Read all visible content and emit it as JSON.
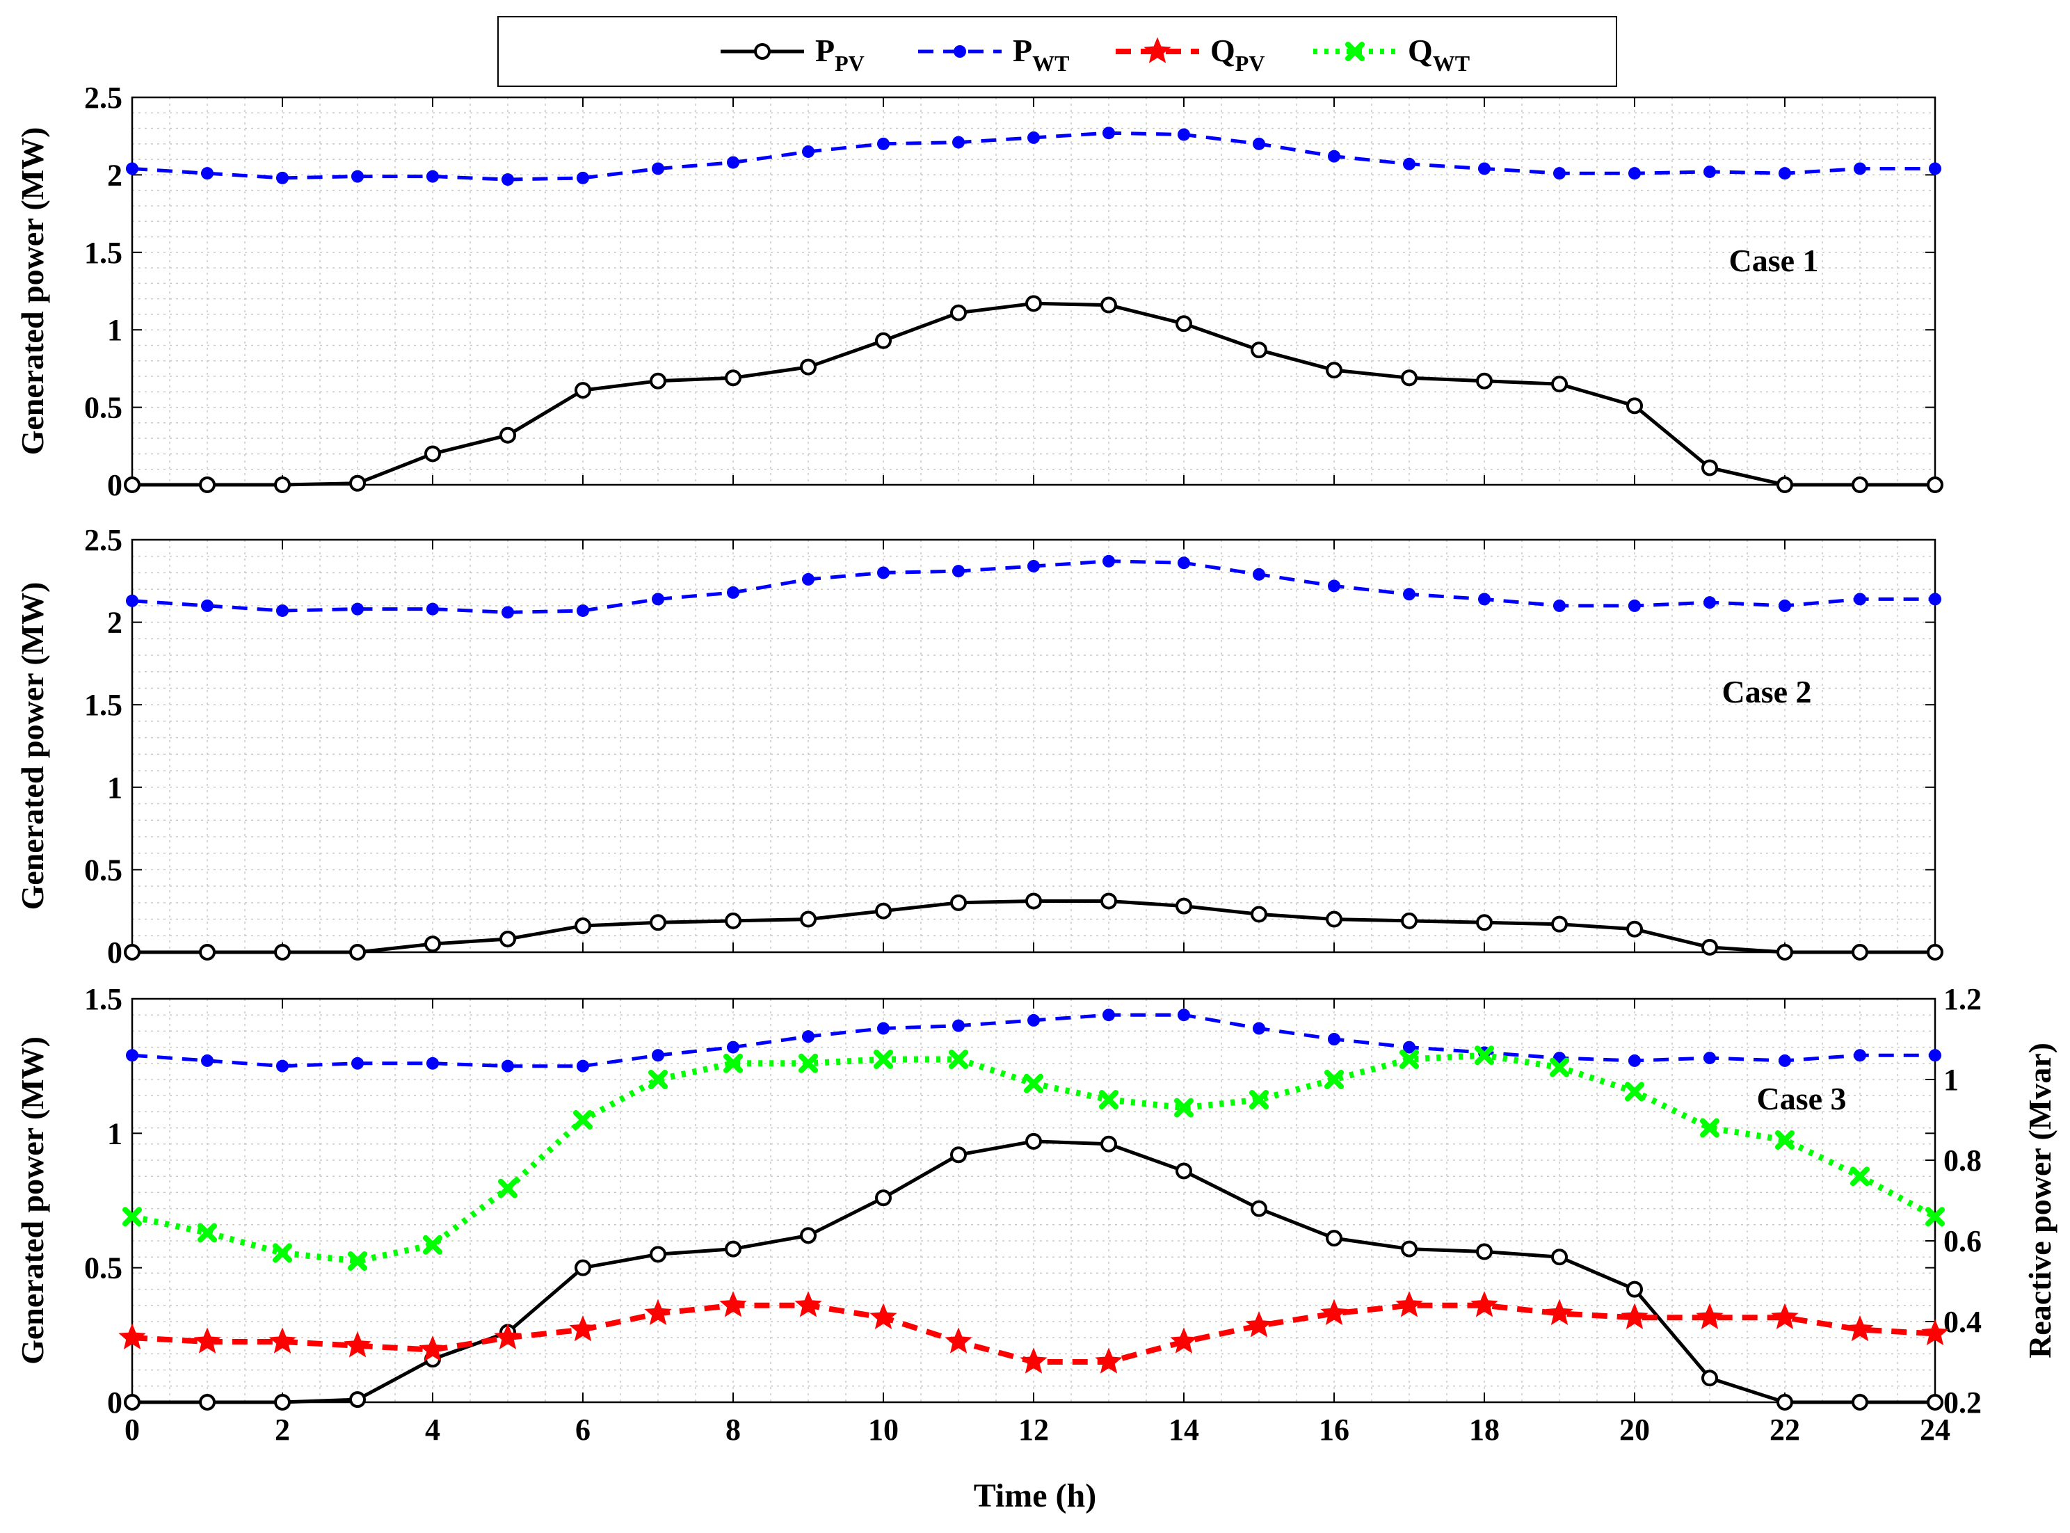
{
  "chart_data": {
    "type": "line",
    "legend": {
      "placement": "top-center",
      "entries": [
        {
          "main": "P",
          "sub": "PV",
          "color": "#000000",
          "style": "solid",
          "marker": "circle"
        },
        {
          "main": "P",
          "sub": "WT",
          "color": "#0000ff",
          "style": "dashed",
          "marker": "dot"
        },
        {
          "main": "Q",
          "sub": "PV",
          "color": "#ff0000",
          "style": "dashed",
          "marker": "star"
        },
        {
          "main": "Q",
          "sub": "WT",
          "color": "#00ff00",
          "style": "dotted",
          "marker": "x"
        }
      ]
    },
    "xlabel": "Time (h)",
    "x": [
      0,
      1,
      2,
      3,
      4,
      5,
      6,
      7,
      8,
      9,
      10,
      11,
      12,
      13,
      14,
      15,
      16,
      17,
      18,
      19,
      20,
      21,
      22,
      23,
      24
    ],
    "xticks": [
      0,
      2,
      4,
      6,
      8,
      10,
      12,
      14,
      16,
      18,
      20,
      22,
      24
    ],
    "xlim": [
      0,
      24
    ],
    "panels": [
      {
        "label": "Case 1",
        "ylabel": "Generated power (MW)",
        "ylim": [
          0,
          2.5
        ],
        "yticks": [
          0,
          0.5,
          1,
          1.5,
          2,
          2.5
        ],
        "ytick_labels": [
          "0",
          "0.5",
          "1",
          "1.5",
          "2",
          "2.5"
        ],
        "series": [
          {
            "name": "P_WT",
            "values": [
              2.04,
              2.01,
              1.98,
              1.99,
              1.99,
              1.97,
              1.98,
              2.04,
              2.08,
              2.15,
              2.2,
              2.21,
              2.24,
              2.27,
              2.26,
              2.2,
              2.12,
              2.07,
              2.04,
              2.01,
              2.01,
              2.02,
              2.01,
              2.04,
              2.04
            ]
          },
          {
            "name": "P_PV",
            "values": [
              0,
              0,
              0,
              0.01,
              0.2,
              0.32,
              0.61,
              0.67,
              0.69,
              0.76,
              0.93,
              1.11,
              1.17,
              1.16,
              1.04,
              0.87,
              0.74,
              0.69,
              0.67,
              0.65,
              0.51,
              0.11,
              0,
              0,
              0
            ]
          }
        ]
      },
      {
        "label": "Case 2",
        "ylabel": "Generated power (MW)",
        "ylim": [
          0,
          2.5
        ],
        "yticks": [
          0,
          0.5,
          1,
          1.5,
          2,
          2.5
        ],
        "ytick_labels": [
          "0",
          "0.5",
          "1",
          "1.5",
          "2",
          "2.5"
        ],
        "series": [
          {
            "name": "P_WT",
            "values": [
              2.13,
              2.1,
              2.07,
              2.08,
              2.08,
              2.06,
              2.07,
              2.14,
              2.18,
              2.26,
              2.3,
              2.31,
              2.34,
              2.37,
              2.36,
              2.29,
              2.22,
              2.17,
              2.14,
              2.1,
              2.1,
              2.12,
              2.1,
              2.14,
              2.14
            ]
          },
          {
            "name": "P_PV",
            "values": [
              0,
              0,
              0,
              0,
              0.05,
              0.08,
              0.16,
              0.18,
              0.19,
              0.2,
              0.25,
              0.3,
              0.31,
              0.31,
              0.28,
              0.23,
              0.2,
              0.19,
              0.18,
              0.17,
              0.14,
              0.03,
              0,
              0,
              0
            ]
          }
        ]
      },
      {
        "label": "Case 3",
        "ylabel": "Generated power (MW)",
        "ylabel_right": "Reactive power (Mvar)",
        "ylim": [
          0,
          1.5
        ],
        "yticks": [
          0,
          0.5,
          1,
          1.5
        ],
        "ytick_labels": [
          "0",
          "0.5",
          "1",
          "1.5"
        ],
        "ylim_right": [
          0.2,
          1.2
        ],
        "yticks_right": [
          0.2,
          0.4,
          0.6,
          0.8,
          1,
          1.2
        ],
        "ytick_labels_right": [
          "0.2",
          "0.4",
          "0.6",
          "0.8",
          "1",
          "1.2"
        ],
        "series": [
          {
            "name": "P_WT",
            "axis": "left",
            "values": [
              1.29,
              1.27,
              1.25,
              1.26,
              1.26,
              1.25,
              1.25,
              1.29,
              1.32,
              1.36,
              1.39,
              1.4,
              1.42,
              1.44,
              1.44,
              1.39,
              1.35,
              1.32,
              1.3,
              1.28,
              1.27,
              1.28,
              1.27,
              1.29,
              1.29
            ]
          },
          {
            "name": "P_PV",
            "axis": "left",
            "values": [
              0,
              0,
              0,
              0.01,
              0.16,
              0.26,
              0.5,
              0.55,
              0.57,
              0.62,
              0.76,
              0.92,
              0.97,
              0.96,
              0.86,
              0.72,
              0.61,
              0.57,
              0.56,
              0.54,
              0.42,
              0.09,
              0,
              0,
              0
            ]
          },
          {
            "name": "Q_PV",
            "axis": "right",
            "values": [
              0.36,
              0.35,
              0.35,
              0.34,
              0.33,
              0.36,
              0.38,
              0.42,
              0.44,
              0.44,
              0.41,
              0.35,
              0.3,
              0.3,
              0.35,
              0.39,
              0.42,
              0.44,
              0.44,
              0.42,
              0.41,
              0.41,
              0.41,
              0.38,
              0.37
            ]
          },
          {
            "name": "Q_WT",
            "axis": "right",
            "values": [
              0.66,
              0.62,
              0.57,
              0.55,
              0.59,
              0.73,
              0.9,
              1.0,
              1.04,
              1.04,
              1.05,
              1.05,
              0.99,
              0.95,
              0.93,
              0.95,
              1.0,
              1.05,
              1.06,
              1.03,
              0.97,
              0.88,
              0.85,
              0.76,
              0.66
            ]
          }
        ]
      }
    ]
  }
}
